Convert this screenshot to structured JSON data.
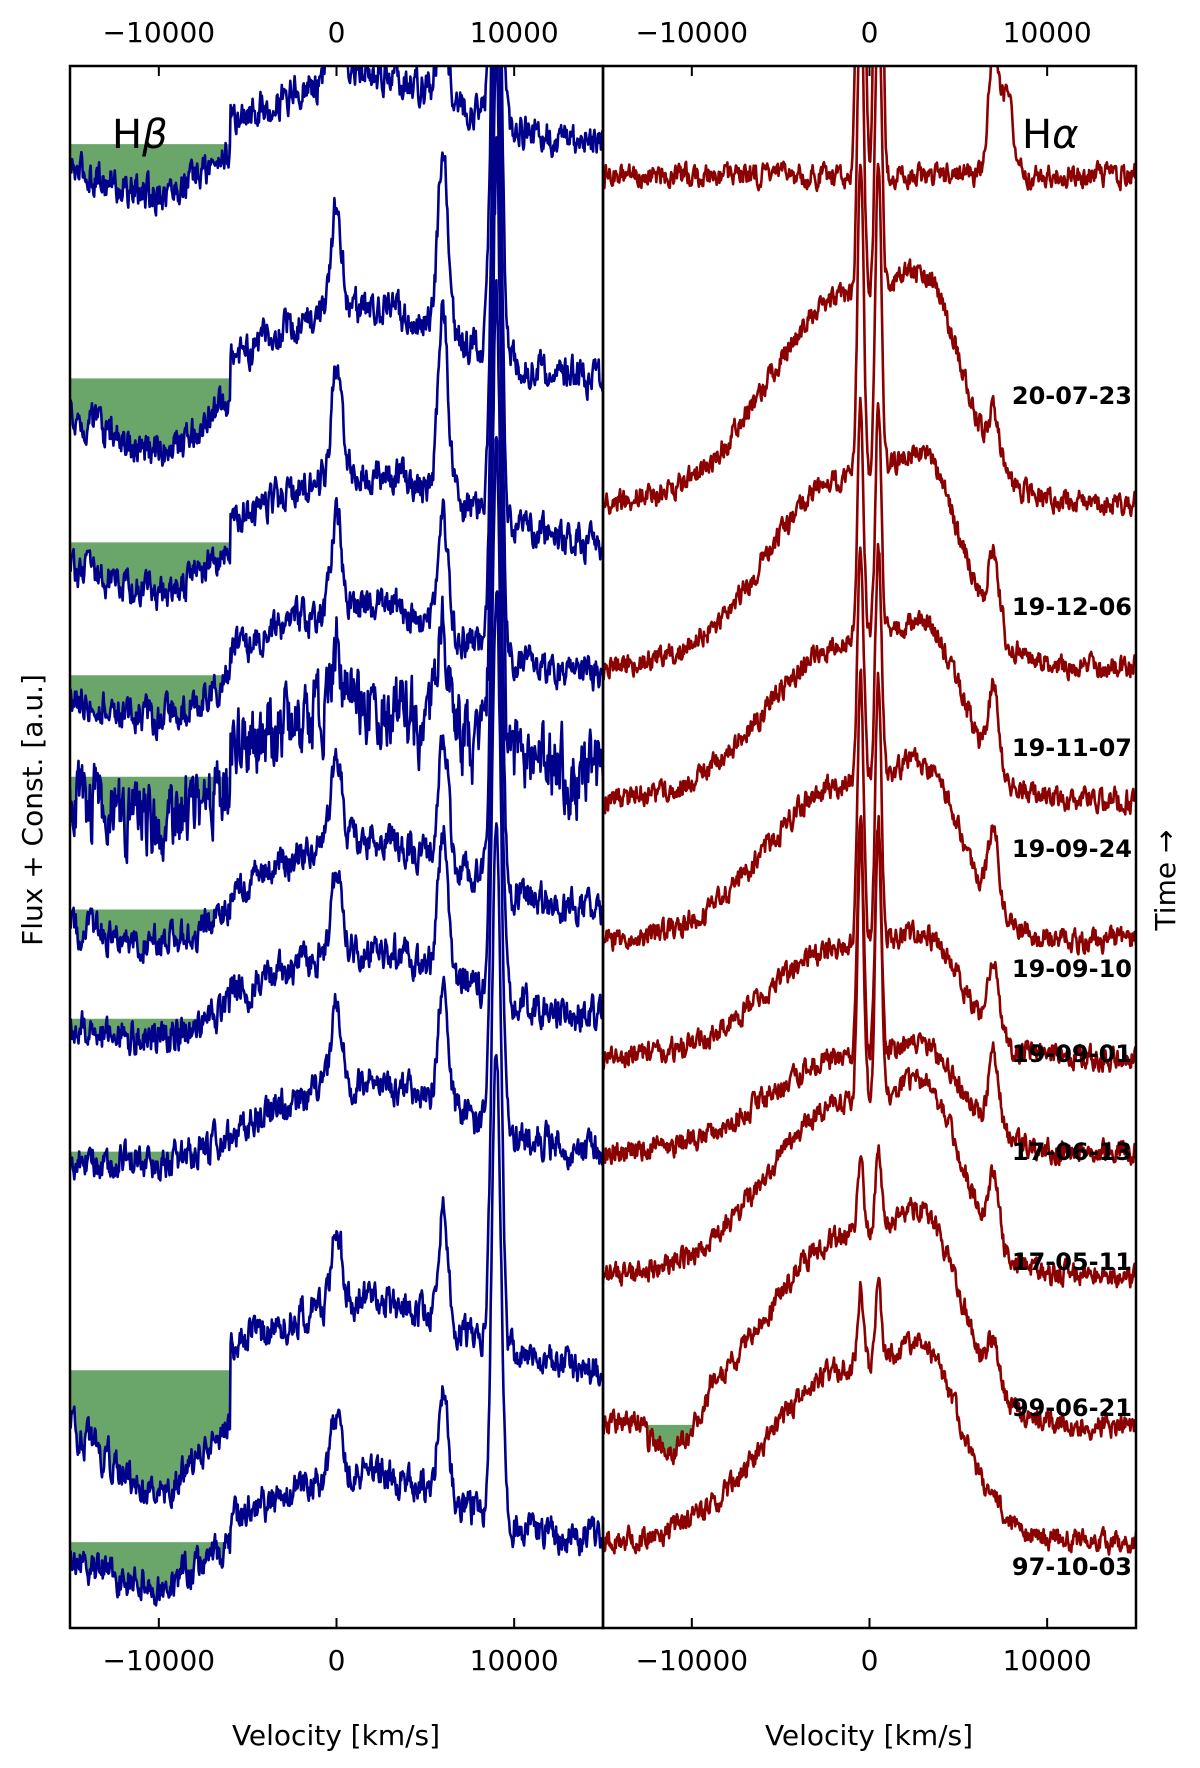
{
  "chart_data": {
    "type": "line",
    "ylabel": "Flux + Const. [a.u.]",
    "side_label": "Time →",
    "dates": [
      "20-07-23",
      "19-12-06",
      "19-11-07",
      "19-09-24",
      "19-09-10",
      "19-09-01",
      "17-06-13",
      "17-05-11",
      "99-06-21",
      "97-10-03"
    ],
    "panels": [
      {
        "id": "hbeta",
        "title_prefix": "H",
        "title_greek": "β",
        "xlabel": "Velocity [km/s]",
        "xlim": [
          -15000,
          15000
        ],
        "xticks": [
          -10000,
          0,
          10000
        ],
        "xtick_labels": [
          "−10000",
          "0",
          "10000"
        ],
        "color": "#00008b",
        "absorption_fill": "#6aa56a",
        "offsets": [
          0.95,
          0.8,
          0.695,
          0.61,
          0.545,
          0.46,
          0.39,
          0.305,
          0.165,
          0.055
        ],
        "lines": [
          {
            "v": 0,
            "heights": [
              0.17,
              0.07,
              0.07,
              0.06,
              0.04,
              0.06,
              0.05,
              0.05,
              0.05,
              0.04
            ]
          },
          {
            "v": 6000,
            "heights": [
              0.06,
              0.12,
              0.12,
              0.07,
              0.06,
              0.08,
              0.09,
              0.08,
              0.07,
              0.07
            ]
          },
          {
            "v": 9000,
            "heights": [
              0.25,
              0.38,
              0.38,
              0.38,
              0.38,
              0.38,
              0.35,
              0.35,
              0.34,
              0.3
            ]
          }
        ],
        "absorption": [
          {
            "v_range": [
              -15000,
              -6000
            ],
            "depths": [
              0.035,
              0.05,
              0.035,
              0.03,
              0.03,
              0.025,
              0.015,
              0.01,
              0.08,
              0.03
            ]
          },
          {
            "v_range": [
              -14000,
              -7000
            ],
            "note": ""
          }
        ]
      },
      {
        "id": "halpha",
        "title_prefix": "H",
        "title_greek": "α",
        "xlabel": "Velocity [km/s]",
        "xlim": [
          -15000,
          15000
        ],
        "xticks": [
          -10000,
          0,
          10000
        ],
        "xtick_labels": [
          "−10000",
          "0",
          "10000"
        ],
        "color": "#8b0000",
        "absorption_fill": "#6aa56a",
        "offsets": [
          0.93,
          0.72,
          0.615,
          0.53,
          0.44,
          0.365,
          0.305,
          0.225,
          0.13,
          0.055
        ],
        "broad_heights": [
          0.0,
          0.13,
          0.12,
          0.1,
          0.1,
          0.07,
          0.06,
          0.11,
          0.12,
          0.11
        ],
        "lines": [
          {
            "v": -500,
            "heights": [
              0.5,
              0.2,
              0.2,
              0.15,
              0.15,
              0.17,
              0.15,
              0.17,
              0.05,
              0.05
            ]
          },
          {
            "v": 500,
            "heights": [
              0.5,
              0.2,
              0.2,
              0.15,
              0.15,
              0.17,
              0.15,
              0.17,
              0.05,
              0.05
            ]
          },
          {
            "v": 7000,
            "heights": [
              0.08,
              0.03,
              0.05,
              0.05,
              0.05,
              0.05,
              0.05,
              0.04,
              0.03,
              0.01
            ]
          }
        ],
        "absorption": [
          {
            "spectrum_index": 8,
            "v_range": [
              -12500,
              -9000
            ],
            "depth": 0.025
          }
        ]
      }
    ]
  }
}
